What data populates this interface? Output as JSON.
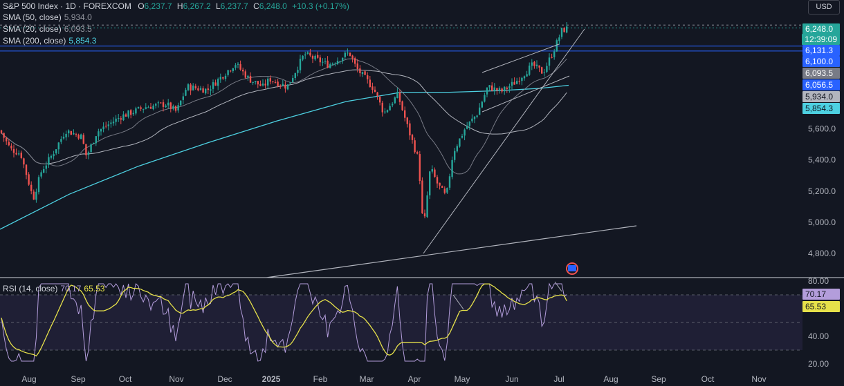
{
  "header": {
    "symbol": "S&P 500 Index · 1D · FOREXCOM",
    "o_label": "O",
    "o": "6,237.7",
    "h_label": "H",
    "h": "6,267.2",
    "l_label": "L",
    "l": "6,237.7",
    "c_label": "C",
    "c": "6,248.0",
    "change": "+10.3 (+0.17%)"
  },
  "indicators": [
    {
      "label": "SMA (50, close)",
      "value": "5,934.0",
      "color": "#d1d4dc"
    },
    {
      "label": "SMA (20, close)",
      "value": "6,093.5",
      "color": "#9598a1"
    },
    {
      "label": "SMA (200, close)",
      "value": "5,854.3",
      "color": "#4dd0e1"
    }
  ],
  "currency": "USD",
  "price_badges": [
    {
      "text": "6,248.0",
      "bg": "#26a69a",
      "fg": "#ffffff",
      "price": 6248.0
    },
    {
      "text": "12:39:09",
      "bg": "#26a69a",
      "fg": "#ffffff",
      "price": 6192
    },
    {
      "text": "6,131.3",
      "bg": "#2962ff",
      "fg": "#ffffff",
      "price": 6131.3
    },
    {
      "text": "6,100.0",
      "bg": "#2962ff",
      "fg": "#ffffff",
      "price": 6100.0
    },
    {
      "text": "6,093.5",
      "bg": "#787b86",
      "fg": "#ffffff",
      "price": 6060
    },
    {
      "text": "6,056.5",
      "bg": "#2962ff",
      "fg": "#ffffff",
      "price": 6015
    },
    {
      "text": "5,934.0",
      "bg": "#b2b5be",
      "fg": "#131722",
      "price": 5934.0
    },
    {
      "text": "5,854.3",
      "bg": "#4dd0e1",
      "fg": "#131722",
      "price": 5854.3
    }
  ],
  "rsi": {
    "label": "RSI (14, close)",
    "value": "70.17",
    "ma_value": "65.53",
    "color": "#b39ddb",
    "ma_color": "#e6e14a",
    "levels": [
      70,
      50,
      30
    ],
    "badges": [
      {
        "text": "70.17",
        "bg": "#b39ddb",
        "fg": "#131722",
        "value": 70.17
      },
      {
        "text": "65.53",
        "bg": "#e6e14a",
        "fg": "#131722",
        "value": 65.53
      }
    ],
    "ticks": [
      "80.00",
      "60.00",
      "40.00",
      "20.00"
    ]
  },
  "chart_data": {
    "type": "candlestick",
    "title": "S&P 500 Index · 1D · FOREXCOM",
    "y_ticks": [
      "5,600.0",
      "5,400.0",
      "5,200.0",
      "5,000.0",
      "4,800.0"
    ],
    "x_ticks": [
      "Aug",
      "Sep",
      "Oct",
      "Nov",
      "Dec",
      "2025",
      "Feb",
      "Mar",
      "Apr",
      "May",
      "Jun",
      "Jul",
      "Aug",
      "Sep",
      "Oct",
      "Nov"
    ],
    "x_tick_bold": "2025",
    "horizontal_lines": [
      6131.3,
      6100.0
    ],
    "close_series_monthly": [
      {
        "month": "Jul-2024",
        "close": 5480
      },
      {
        "month": "Aug-2024",
        "close": 5550
      },
      {
        "month": "Sep-2024",
        "close": 5700
      },
      {
        "month": "Oct-2024",
        "close": 5720
      },
      {
        "month": "Nov-2024",
        "close": 6020
      },
      {
        "month": "Dec-2024",
        "close": 5880
      },
      {
        "month": "Jan-2025",
        "close": 6040
      },
      {
        "month": "Feb-2025",
        "close": 5950
      },
      {
        "month": "Mar-2025",
        "close": 5580
      },
      {
        "month": "Apr-2025",
        "close": 5560
      },
      {
        "month": "May-2025",
        "close": 5910
      },
      {
        "month": "Jun-2025",
        "close": 6200
      },
      {
        "month": "Jul-2025",
        "close": 6248
      }
    ],
    "key_levels": {
      "low_apr": 4800,
      "high_jul": 6267.2
    }
  }
}
